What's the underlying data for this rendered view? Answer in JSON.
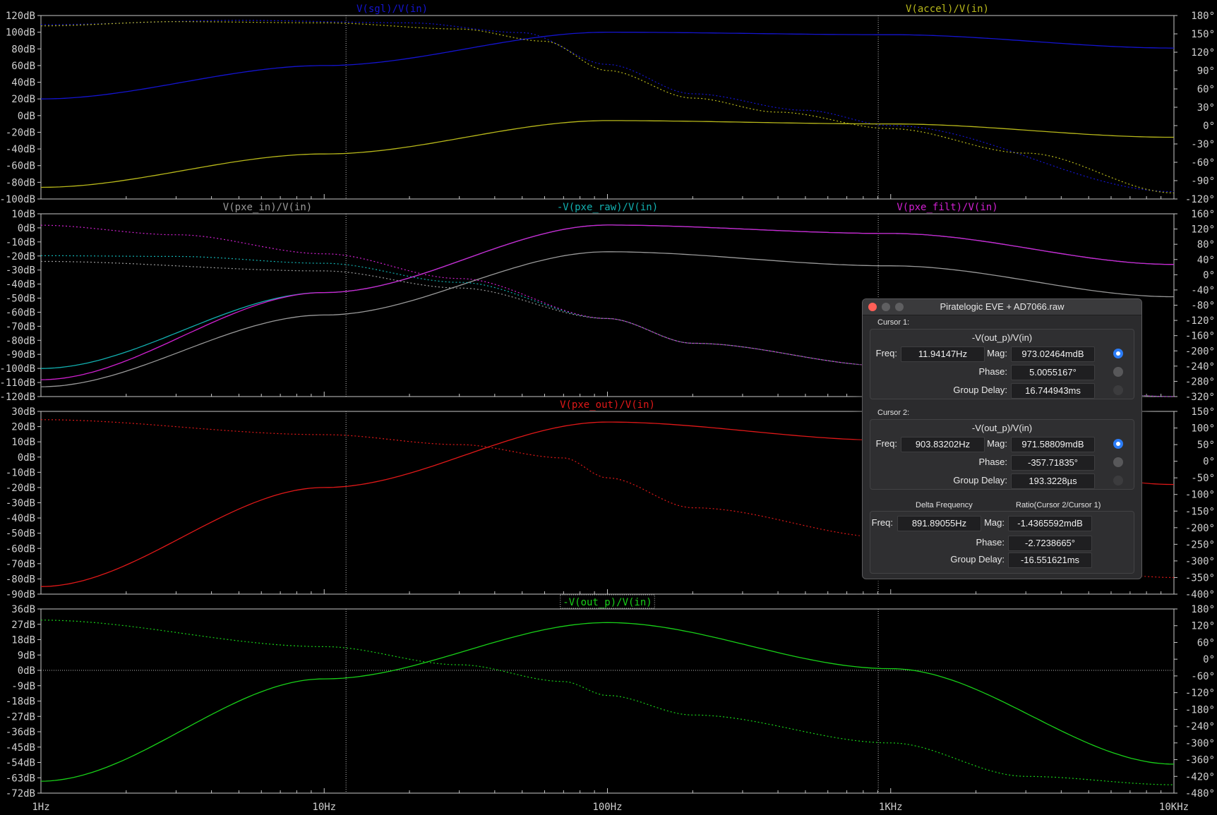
{
  "colors": {
    "background": "#000000",
    "grid_axes": "#c8c8c8",
    "sgl": "#1414d0",
    "accel": "#b8b81a",
    "pxe_in": "#9a9a9a",
    "pxe_raw": "#12b0b0",
    "pxe_filt": "#d020d0",
    "pxe_out": "#e01818",
    "out_p": "#18d018",
    "cursor_select": "#2b7cf6"
  },
  "x_axis": {
    "scale": "log",
    "range": [
      1,
      10000
    ],
    "tick_values": [
      1,
      10,
      100,
      1000,
      10000
    ],
    "tick_labels": [
      "1Hz",
      "10Hz",
      "100Hz",
      "1KHz",
      "10KHz"
    ]
  },
  "cursors": {
    "cursor1_freq_hz": 11.94147,
    "cursor2_freq_hz": 903.83202,
    "hline_pane4_db": 0
  },
  "chart_data": [
    {
      "type": "line",
      "x_scale": "log",
      "ylim_left": [
        -100,
        120
      ],
      "ylim_right": [
        -120,
        180
      ],
      "left_ticks": [
        "120dB",
        "100dB",
        "80dB",
        "60dB",
        "40dB",
        "20dB",
        "0dB",
        "-20dB",
        "-40dB",
        "-60dB",
        "-80dB",
        "-100dB"
      ],
      "right_ticks": [
        "180°",
        "150°",
        "120°",
        "90°",
        "60°",
        "30°",
        "0°",
        "-30°",
        "-60°",
        "-90°",
        "-120°"
      ],
      "series": [
        {
          "name": "V(sgl)/V(in)",
          "color": "#1414d0",
          "title_pos": "center-left",
          "mag_points": [
            [
              1,
              20
            ],
            [
              10,
              60
            ],
            [
              100,
              100
            ],
            [
              1000,
              97
            ],
            [
              10000,
              81
            ]
          ],
          "phase_points": [
            [
              1,
              165
            ],
            [
              5,
              172
            ],
            [
              20,
              168
            ],
            [
              50,
              152
            ],
            [
              100,
              100
            ],
            [
              200,
              52
            ],
            [
              500,
              25
            ],
            [
              1000,
              0
            ],
            [
              10000,
              -108
            ]
          ]
        },
        {
          "name": "V(accel)/V(in)",
          "color": "#b8b81a",
          "title_pos": "right",
          "mag_points": [
            [
              1,
              -86
            ],
            [
              10,
              -46
            ],
            [
              100,
              -6
            ],
            [
              1000,
              -10
            ],
            [
              10000,
              -26
            ]
          ],
          "phase_points": [
            [
              1,
              163
            ],
            [
              3,
              170
            ],
            [
              10,
              168
            ],
            [
              30,
              158
            ],
            [
              60,
              138
            ],
            [
              100,
              90
            ],
            [
              200,
              45
            ],
            [
              400,
              22
            ],
            [
              1000,
              -5
            ],
            [
              3000,
              -45
            ],
            [
              10000,
              -110
            ]
          ]
        }
      ]
    },
    {
      "type": "line",
      "x_scale": "log",
      "ylim_left": [
        -120,
        10
      ],
      "ylim_right": [
        -320,
        160
      ],
      "left_ticks": [
        "10dB",
        "0dB",
        "-10dB",
        "-20dB",
        "-30dB",
        "-40dB",
        "-50dB",
        "-60dB",
        "-70dB",
        "-80dB",
        "-90dB",
        "-100dB",
        "-110dB",
        "-120dB"
      ],
      "right_ticks": [
        "160°",
        "120°",
        "80°",
        "40°",
        "0°",
        "-40°",
        "-80°",
        "-120°",
        "-160°",
        "-200°",
        "-240°",
        "-280°",
        "-320°"
      ],
      "series": [
        {
          "name": "V(pxe_in)/V(in)",
          "color": "#9a9a9a",
          "title_pos": "left",
          "mag_points": [
            [
              1,
              -113
            ],
            [
              10,
              -62
            ],
            [
              100,
              -17
            ],
            [
              1000,
              -27
            ],
            [
              10000,
              -49
            ]
          ],
          "phase_points": [
            [
              1,
              35
            ],
            [
              10,
              10
            ],
            [
              30,
              -35
            ],
            [
              100,
              -115
            ],
            [
              200,
              -180
            ],
            [
              1000,
              -240
            ],
            [
              10000,
              -320
            ]
          ]
        },
        {
          "name": "-V(pxe_raw)/V(in)",
          "color": "#12b0b0",
          "title_pos": "center",
          "mag_points": [
            [
              1,
              -100
            ],
            [
              10,
              -46
            ],
            [
              100,
              2
            ],
            [
              1000,
              -4
            ],
            [
              10000,
              -26
            ]
          ],
          "phase_points": [
            [
              1,
              50
            ],
            [
              3,
              48
            ],
            [
              10,
              30
            ],
            [
              30,
              -20
            ],
            [
              100,
              -115
            ],
            [
              200,
              -180
            ],
            [
              1000,
              -240
            ],
            [
              10000,
              -320
            ]
          ]
        },
        {
          "name": "V(pxe_filt)/V(in)",
          "color": "#d020d0",
          "title_pos": "right",
          "mag_points": [
            [
              1,
              -108
            ],
            [
              10,
              -46
            ],
            [
              100,
              2
            ],
            [
              1000,
              -4
            ],
            [
              10000,
              -26
            ]
          ],
          "phase_points": [
            [
              1,
              130
            ],
            [
              3,
              105
            ],
            [
              10,
              55
            ],
            [
              30,
              -10
            ],
            [
              100,
              -115
            ],
            [
              200,
              -180
            ],
            [
              1000,
              -240
            ],
            [
              10000,
              -320
            ]
          ]
        }
      ]
    },
    {
      "type": "line",
      "x_scale": "log",
      "ylim_left": [
        -90,
        30
      ],
      "ylim_right": [
        -400,
        150
      ],
      "left_ticks": [
        "30dB",
        "20dB",
        "10dB",
        "0dB",
        "-10dB",
        "-20dB",
        "-30dB",
        "-40dB",
        "-50dB",
        "-60dB",
        "-70dB",
        "-80dB",
        "-90dB"
      ],
      "right_ticks": [
        "150°",
        "100°",
        "50°",
        "0°",
        "-50°",
        "-100°",
        "-150°",
        "-200°",
        "-250°",
        "-300°",
        "-350°",
        "-400°"
      ],
      "series": [
        {
          "name": "V(pxe_out)/V(in)",
          "color": "#e01818",
          "title_pos": "center",
          "mag_points": [
            [
              1,
              -85
            ],
            [
              10,
              -20
            ],
            [
              100,
              23
            ],
            [
              1000,
              11
            ],
            [
              10000,
              -18
            ]
          ],
          "phase_points": [
            [
              1,
              125
            ],
            [
              10,
              80
            ],
            [
              30,
              50
            ],
            [
              70,
              10
            ],
            [
              100,
              -50
            ],
            [
              200,
              -140
            ],
            [
              1000,
              -230
            ],
            [
              10000,
              -350
            ]
          ]
        }
      ]
    },
    {
      "type": "line",
      "x_scale": "log",
      "ylim_left": [
        -72,
        36
      ],
      "ylim_right": [
        -480,
        180
      ],
      "left_ticks": [
        "36dB",
        "27dB",
        "18dB",
        "9dB",
        "0dB",
        "-9dB",
        "-18dB",
        "-27dB",
        "-36dB",
        "-45dB",
        "-54dB",
        "-63dB",
        "-72dB"
      ],
      "right_ticks": [
        "180°",
        "120°",
        "60°",
        "0°",
        "-60°",
        "-120°",
        "-180°",
        "-240°",
        "-300°",
        "-360°",
        "-420°",
        "-480°"
      ],
      "series": [
        {
          "name": "-V(out_p)/V(in)",
          "color": "#18d018",
          "title_pos": "center",
          "boxed": true,
          "mag_points": [
            [
              1,
              -65
            ],
            [
              10,
              -5
            ],
            [
              100,
              28
            ],
            [
              1000,
              1
            ],
            [
              10000,
              -55
            ]
          ],
          "phase_points": [
            [
              1,
              140
            ],
            [
              10,
              45
            ],
            [
              30,
              -20
            ],
            [
              70,
              -80
            ],
            [
              100,
              -130
            ],
            [
              200,
              -200
            ],
            [
              1000,
              -300
            ],
            [
              3000,
              -420
            ],
            [
              10000,
              -450
            ]
          ]
        }
      ]
    }
  ],
  "dialog": {
    "title": "Piratelogic EVE + AD7066.raw",
    "cursor1": {
      "section_label": "Cursor 1:",
      "trace": "-V(out_p)/V(in)",
      "freq_label": "Freq:",
      "freq_value": "11.94147Hz",
      "mag_label": "Mag:",
      "mag_value": "973.02464mdB",
      "phase_label": "Phase:",
      "phase_value": "5.0055167°",
      "gd_label": "Group Delay:",
      "gd_value": "16.744943ms"
    },
    "cursor2": {
      "section_label": "Cursor 2:",
      "trace": "-V(out_p)/V(in)",
      "freq_label": "Freq:",
      "freq_value": "903.83202Hz",
      "mag_label": "Mag:",
      "mag_value": "971.58809mdB",
      "phase_label": "Phase:",
      "phase_value": "-357.71835°",
      "gd_label": "Group Delay:",
      "gd_value": "193.3228µs"
    },
    "delta": {
      "delta_header": "Delta Frequency",
      "ratio_header": "Ratio(Cursor 2/Cursor 1)",
      "freq_label": "Freq:",
      "freq_value": "891.89055Hz",
      "mag_label": "Mag:",
      "mag_value": "-1.4365592mdB",
      "phase_label": "Phase:",
      "phase_value": "-2.7238665°",
      "gd_label": "Group Delay:",
      "gd_value": "-16.551621ms"
    }
  }
}
